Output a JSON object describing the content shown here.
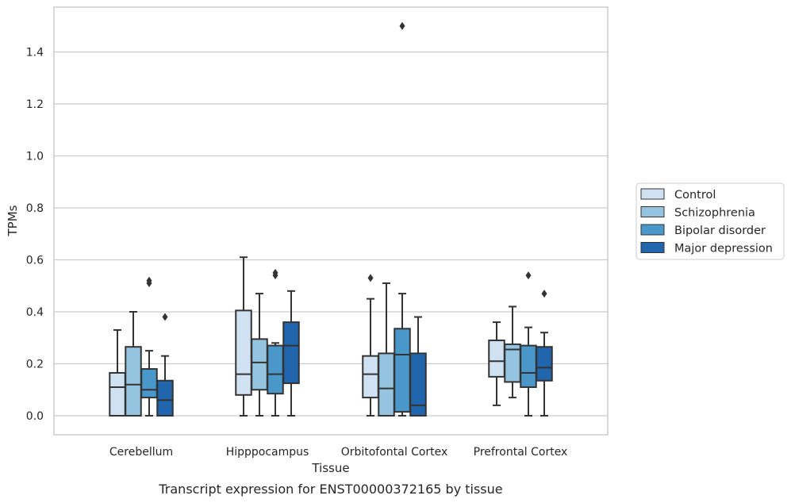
{
  "caption": "Transcript expression for ENST00000372165 by tissue",
  "chart_data": {
    "type": "box",
    "xlabel": "Tissue",
    "ylabel": "TPMs",
    "ylim": [
      -0.07,
      1.58
    ],
    "yticks": [
      "0.0",
      "0.2",
      "0.4",
      "0.6",
      "0.8",
      "1.0",
      "1.2",
      "1.4"
    ],
    "grid": "horizontal",
    "legend_position": "right",
    "categories": [
      "Cerebellum",
      "Hipppocampus",
      "Orbitofontal Cortex",
      "Prefrontal Cortex"
    ],
    "series": [
      {
        "name": "Control",
        "color": "#d0e1f2",
        "boxes": [
          {
            "min": 0.0,
            "q1": 0.0,
            "median": 0.11,
            "q3": 0.165,
            "max": 0.33,
            "outliers": []
          },
          {
            "min": 0.0,
            "q1": 0.08,
            "median": 0.16,
            "q3": 0.405,
            "max": 0.61,
            "outliers": []
          },
          {
            "min": 0.0,
            "q1": 0.07,
            "median": 0.16,
            "q3": 0.23,
            "max": 0.45,
            "outliers": [
              0.53
            ]
          },
          {
            "min": 0.04,
            "q1": 0.15,
            "median": 0.21,
            "q3": 0.29,
            "max": 0.36,
            "outliers": []
          }
        ]
      },
      {
        "name": "Schizophrenia",
        "color": "#94c4df",
        "boxes": [
          {
            "min": 0.0,
            "q1": 0.0,
            "median": 0.12,
            "q3": 0.265,
            "max": 0.4,
            "outliers": []
          },
          {
            "min": 0.0,
            "q1": 0.1,
            "median": 0.205,
            "q3": 0.295,
            "max": 0.47,
            "outliers": []
          },
          {
            "min": 0.0,
            "q1": 0.0,
            "median": 0.105,
            "q3": 0.24,
            "max": 0.51,
            "outliers": []
          },
          {
            "min": 0.07,
            "q1": 0.13,
            "median": 0.255,
            "q3": 0.275,
            "max": 0.42,
            "outliers": []
          }
        ]
      },
      {
        "name": "Bipolar disorder",
        "color": "#4a98c9",
        "boxes": [
          {
            "min": 0.0,
            "q1": 0.07,
            "median": 0.1,
            "q3": 0.18,
            "max": 0.25,
            "outliers": [
              0.51,
              0.52
            ]
          },
          {
            "min": 0.0,
            "q1": 0.085,
            "median": 0.16,
            "q3": 0.27,
            "max": 0.28,
            "outliers": [
              0.54,
              0.55
            ]
          },
          {
            "min": 0.0,
            "q1": 0.015,
            "median": 0.235,
            "q3": 0.335,
            "max": 0.47,
            "outliers": [
              1.5
            ]
          },
          {
            "min": 0.0,
            "q1": 0.11,
            "median": 0.165,
            "q3": 0.27,
            "max": 0.34,
            "outliers": [
              0.54
            ]
          }
        ]
      },
      {
        "name": "Major depression",
        "color": "#2166ac",
        "boxes": [
          {
            "min": 0.0,
            "q1": 0.0,
            "median": 0.06,
            "q3": 0.135,
            "max": 0.23,
            "outliers": [
              0.38
            ]
          },
          {
            "min": 0.0,
            "q1": 0.125,
            "median": 0.27,
            "q3": 0.36,
            "max": 0.48,
            "outliers": []
          },
          {
            "min": 0.0,
            "q1": 0.0,
            "median": 0.04,
            "q3": 0.24,
            "max": 0.38,
            "outliers": []
          },
          {
            "min": 0.0,
            "q1": 0.135,
            "median": 0.185,
            "q3": 0.265,
            "max": 0.32,
            "outliers": [
              0.47
            ]
          }
        ]
      }
    ]
  }
}
